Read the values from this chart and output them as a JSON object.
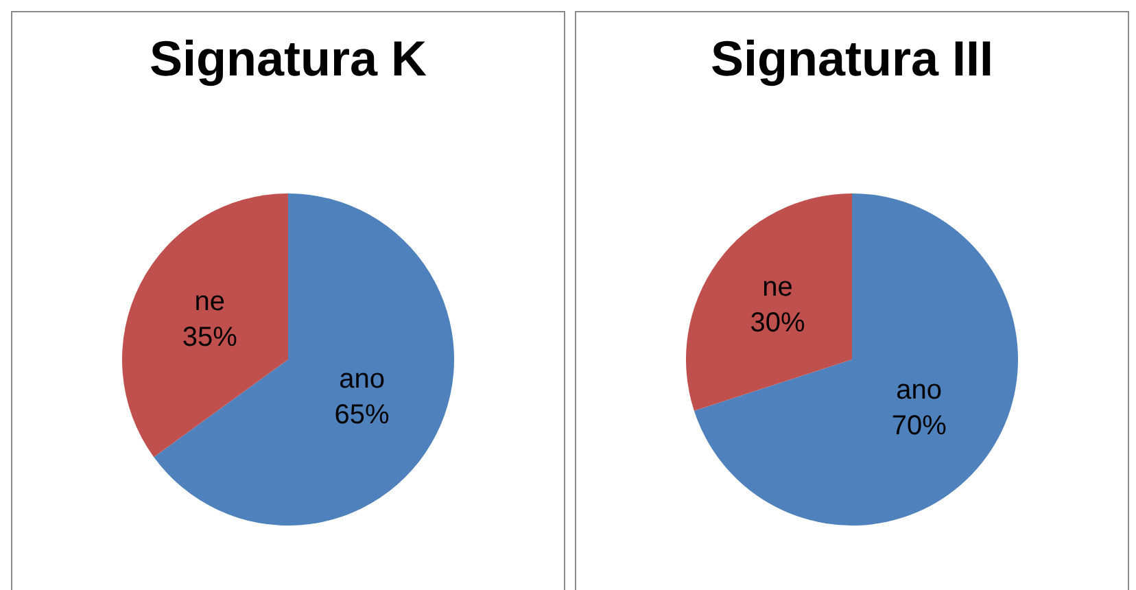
{
  "chart_data": [
    {
      "type": "pie",
      "title": "Signatura K",
      "categories": [
        "ano",
        "ne"
      ],
      "values": [
        65,
        35
      ],
      "colors": [
        "#4f81bd",
        "#c0504d"
      ],
      "value_labels": [
        "65%",
        "35%"
      ],
      "legend": false
    },
    {
      "type": "pie",
      "title": "Signatura III",
      "categories": [
        "ano",
        "ne"
      ],
      "values": [
        70,
        30
      ],
      "colors": [
        "#4f81bd",
        "#c0504d"
      ],
      "value_labels": [
        "70%",
        "30%"
      ],
      "legend": false
    }
  ]
}
